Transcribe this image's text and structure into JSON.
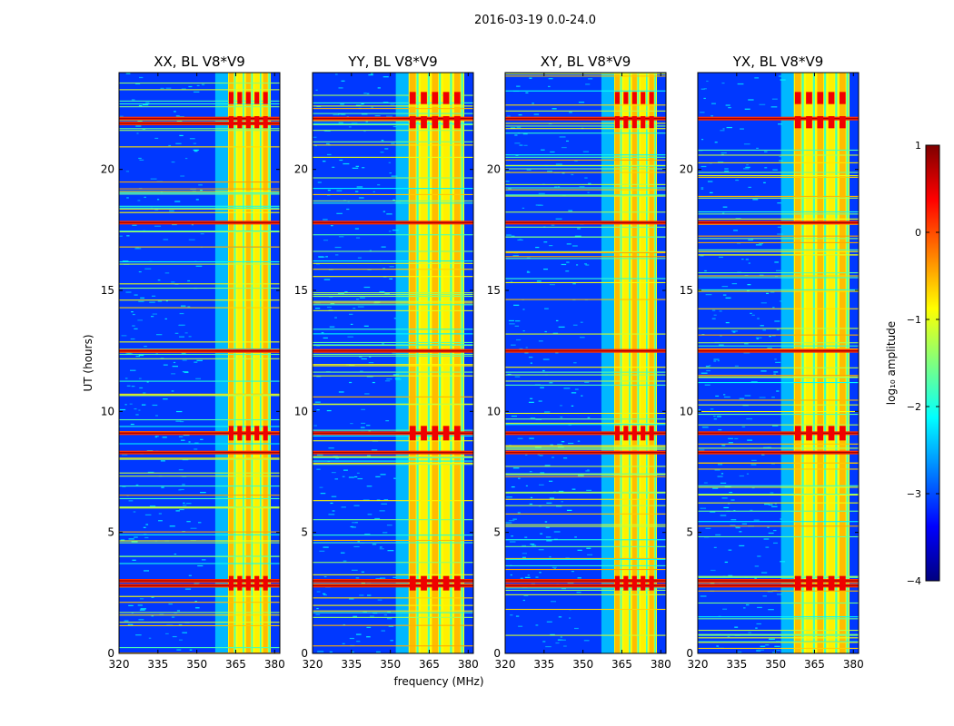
{
  "figure": {
    "suptitle": "2016-03-19 0.0-24.0",
    "xlabel": "frequency (MHz)",
    "ylabel": "UT (hours)"
  },
  "chart_data": [
    {
      "type": "heatmap",
      "title": "XX, BL V8*V9",
      "xlim": [
        320,
        382
      ],
      "ylim": [
        0,
        24
      ],
      "xticks": [
        320,
        335,
        350,
        365,
        380
      ],
      "yticks": [
        0,
        5,
        10,
        15,
        20
      ],
      "xlabel": "frequency (MHz)",
      "ylabel": "UT (hours)",
      "band_edges": [
        352,
        361
      ],
      "high_stripes_hours": [
        2.8,
        3.0,
        8.3,
        9.1,
        12.5,
        17.8,
        21.9,
        22.1
      ]
    },
    {
      "type": "heatmap",
      "title": "YY, BL V8*V9",
      "xlim": [
        320,
        382
      ],
      "ylim": [
        0,
        24
      ],
      "xticks": [
        320,
        335,
        350,
        365,
        380
      ],
      "yticks": [
        0,
        5,
        10,
        15,
        20
      ],
      "band_edges": [
        352,
        361
      ],
      "high_stripes_hours": [
        2.8,
        3.0,
        8.3,
        9.1,
        12.5,
        17.8,
        22.1
      ]
    },
    {
      "type": "heatmap",
      "title": "XY, BL V8*V9",
      "xlim": [
        320,
        382
      ],
      "ylim": [
        0,
        24
      ],
      "xticks": [
        320,
        335,
        350,
        365,
        380
      ],
      "yticks": [
        0,
        5,
        10,
        15,
        20
      ],
      "band_edges": [
        352,
        361
      ],
      "high_stripes_hours": [
        2.8,
        3.0,
        8.3,
        9.1,
        12.5,
        17.8,
        22.1
      ]
    },
    {
      "type": "heatmap",
      "title": "YX, BL V8*V9",
      "xlim": [
        320,
        382
      ],
      "ylim": [
        0,
        24
      ],
      "xticks": [
        320,
        335,
        350,
        365,
        380
      ],
      "yticks": [
        0,
        5,
        10,
        15,
        20
      ],
      "band_edges": [
        352,
        361
      ],
      "high_stripes_hours": [
        2.8,
        3.0,
        8.3,
        9.1,
        12.5,
        17.8,
        22.1
      ]
    }
  ],
  "colorbar": {
    "label": "log₁₀ amplitude",
    "range": [
      -4,
      1
    ],
    "ticks": [
      {
        "value": 1,
        "label": "1"
      },
      {
        "value": 0,
        "label": "0"
      },
      {
        "value": -1,
        "label": "−1"
      },
      {
        "value": -2,
        "label": "−2"
      },
      {
        "value": -3,
        "label": "−3"
      },
      {
        "value": -4,
        "label": "−4"
      }
    ],
    "colormap": [
      "#00007f",
      "#0000ff",
      "#007fff",
      "#00ffff",
      "#7fff7f",
      "#ffff00",
      "#ff7f00",
      "#ff0000",
      "#7f0000"
    ]
  }
}
